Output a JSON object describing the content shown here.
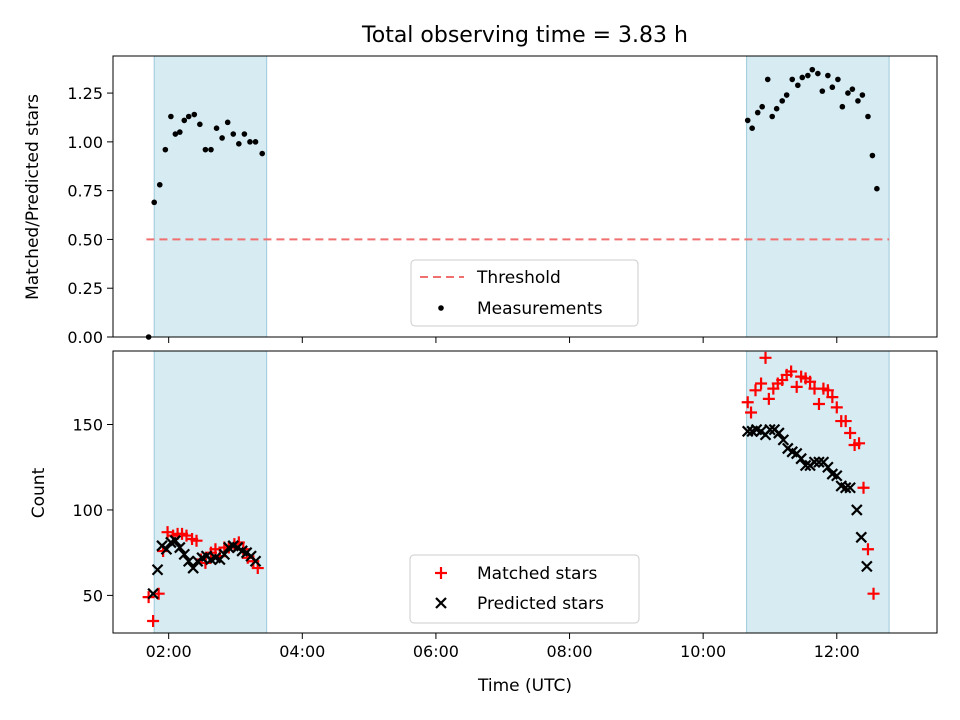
{
  "chart_data": [
    {
      "type": "scatter",
      "title": "Total observing time = 3.83 h",
      "xlabel": "",
      "ylabel": "Matched/Predicted stars",
      "xlim": [
        "01:10",
        "13:30"
      ],
      "ylim": [
        0,
        1.44
      ],
      "yticks": [
        0.0,
        0.25,
        0.5,
        0.75,
        1.0,
        1.25
      ],
      "ytick_labels": [
        "0.00",
        "0.25",
        "0.50",
        "0.75",
        "1.00",
        "1.25"
      ],
      "grid": false,
      "legend": "lower center",
      "shaded_intervals": [
        [
          "01:47",
          "03:28"
        ],
        [
          "10:39",
          "12:47"
        ]
      ],
      "threshold": {
        "name": "Threshold",
        "y": 0.5,
        "x_range": [
          "01:40",
          "12:47"
        ],
        "color": "#f07070"
      },
      "series": [
        {
          "name": "Measurements",
          "color": "#000000",
          "points": [
            [
              "01:42",
              0.0
            ],
            [
              "01:47",
              0.69
            ],
            [
              "01:52",
              0.78
            ],
            [
              "01:57",
              0.96
            ],
            [
              "02:02",
              1.13
            ],
            [
              "02:06",
              1.04
            ],
            [
              "02:10",
              1.05
            ],
            [
              "02:14",
              1.11
            ],
            [
              "02:18",
              1.13
            ],
            [
              "02:23",
              1.14
            ],
            [
              "02:28",
              1.09
            ],
            [
              "02:33",
              0.96
            ],
            [
              "02:38",
              0.96
            ],
            [
              "02:43",
              1.07
            ],
            [
              "02:48",
              1.02
            ],
            [
              "02:53",
              1.1
            ],
            [
              "02:58",
              1.04
            ],
            [
              "03:03",
              0.99
            ],
            [
              "03:08",
              1.04
            ],
            [
              "03:13",
              1.0
            ],
            [
              "03:18",
              1.0
            ],
            [
              "03:24",
              0.94
            ],
            [
              "10:40",
              1.11
            ],
            [
              "10:44",
              1.07
            ],
            [
              "10:49",
              1.15
            ],
            [
              "10:53",
              1.18
            ],
            [
              "10:58",
              1.32
            ],
            [
              "11:02",
              1.13
            ],
            [
              "11:06",
              1.17
            ],
            [
              "11:11",
              1.21
            ],
            [
              "11:15",
              1.24
            ],
            [
              "11:20",
              1.32
            ],
            [
              "11:25",
              1.29
            ],
            [
              "11:29",
              1.33
            ],
            [
              "11:34",
              1.34
            ],
            [
              "11:38",
              1.37
            ],
            [
              "11:43",
              1.35
            ],
            [
              "11:47",
              1.26
            ],
            [
              "11:52",
              1.34
            ],
            [
              "11:56",
              1.28
            ],
            [
              "12:01",
              1.32
            ],
            [
              "12:05",
              1.18
            ],
            [
              "12:10",
              1.25
            ],
            [
              "12:14",
              1.27
            ],
            [
              "12:19",
              1.21
            ],
            [
              "12:23",
              1.24
            ],
            [
              "12:28",
              1.13
            ],
            [
              "12:32",
              0.93
            ],
            [
              "12:36",
              0.76
            ]
          ]
        }
      ]
    },
    {
      "type": "scatter",
      "title": "",
      "xlabel": "Time (UTC)",
      "ylabel": "Count",
      "xlim": [
        "01:10",
        "13:30"
      ],
      "ylim": [
        28,
        193
      ],
      "xticks": [
        "02:00",
        "04:00",
        "06:00",
        "08:00",
        "10:00",
        "12:00"
      ],
      "yticks": [
        50,
        100,
        150
      ],
      "ytick_labels": [
        "50",
        "100",
        "150"
      ],
      "grid": false,
      "legend": "lower center",
      "shaded_intervals": [
        [
          "01:47",
          "03:28"
        ],
        [
          "10:39",
          "12:47"
        ]
      ],
      "series": [
        {
          "name": "Matched stars",
          "marker": "+",
          "color": "#ff0000",
          "points": [
            [
              "01:42",
              49
            ],
            [
              "01:46",
              35
            ],
            [
              "01:51",
              51
            ],
            [
              "01:55",
              76
            ],
            [
              "01:59",
              87
            ],
            [
              "02:04",
              85
            ],
            [
              "02:08",
              86
            ],
            [
              "02:12",
              86
            ],
            [
              "02:16",
              85
            ],
            [
              "02:21",
              83
            ],
            [
              "02:25",
              82
            ],
            [
              "02:29",
              71
            ],
            [
              "02:33",
              69
            ],
            [
              "02:38",
              75
            ],
            [
              "02:42",
              77
            ],
            [
              "02:46",
              73
            ],
            [
              "02:50",
              78
            ],
            [
              "02:54",
              78
            ],
            [
              "02:59",
              80
            ],
            [
              "03:03",
              81
            ],
            [
              "03:07",
              77
            ],
            [
              "03:11",
              72
            ],
            [
              "03:16",
              70
            ],
            [
              "03:20",
              66
            ],
            [
              "10:40",
              163
            ],
            [
              "10:43",
              157
            ],
            [
              "10:47",
              170
            ],
            [
              "10:52",
              174
            ],
            [
              "10:56",
              189
            ],
            [
              "10:59",
              165
            ],
            [
              "11:03",
              171
            ],
            [
              "11:07",
              174
            ],
            [
              "11:11",
              176
            ],
            [
              "11:15",
              179
            ],
            [
              "11:19",
              181
            ],
            [
              "11:24",
              172
            ],
            [
              "11:28",
              178
            ],
            [
              "11:32",
              177
            ],
            [
              "11:36",
              175
            ],
            [
              "11:40",
              171
            ],
            [
              "11:44",
              162
            ],
            [
              "11:48",
              171
            ],
            [
              "11:52",
              170
            ],
            [
              "11:56",
              166
            ],
            [
              "12:00",
              160
            ],
            [
              "12:04",
              152
            ],
            [
              "12:08",
              152
            ],
            [
              "12:12",
              145
            ],
            [
              "12:16",
              138
            ],
            [
              "12:20",
              139
            ],
            [
              "12:24",
              113
            ],
            [
              "12:28",
              77
            ],
            [
              "12:33",
              51
            ]
          ]
        },
        {
          "name": "Predicted stars",
          "marker": "x",
          "color": "#000000",
          "points": [
            [
              "01:46",
              51
            ],
            [
              "01:50",
              65
            ],
            [
              "01:54",
              79
            ],
            [
              "01:58",
              77
            ],
            [
              "02:02",
              81
            ],
            [
              "02:06",
              82
            ],
            [
              "02:10",
              78
            ],
            [
              "02:14",
              74
            ],
            [
              "02:18",
              70
            ],
            [
              "02:22",
              66
            ],
            [
              "02:26",
              70
            ],
            [
              "02:30",
              72
            ],
            [
              "02:34",
              73
            ],
            [
              "02:38",
              71
            ],
            [
              "02:42",
              72
            ],
            [
              "02:46",
              71
            ],
            [
              "02:50",
              74
            ],
            [
              "02:54",
              78
            ],
            [
              "02:58",
              79
            ],
            [
              "03:02",
              78
            ],
            [
              "03:06",
              76
            ],
            [
              "03:10",
              75
            ],
            [
              "03:14",
              73
            ],
            [
              "03:18",
              70
            ],
            [
              "10:40",
              146
            ],
            [
              "10:44",
              146
            ],
            [
              "10:48",
              147
            ],
            [
              "10:52",
              146
            ],
            [
              "10:56",
              144
            ],
            [
              "11:00",
              147
            ],
            [
              "11:04",
              147
            ],
            [
              "11:08",
              145
            ],
            [
              "11:12",
              141
            ],
            [
              "11:16",
              136
            ],
            [
              "11:20",
              134
            ],
            [
              "11:24",
              133
            ],
            [
              "11:28",
              130
            ],
            [
              "11:32",
              126
            ],
            [
              "11:36",
              126
            ],
            [
              "11:40",
              128
            ],
            [
              "11:44",
              128
            ],
            [
              "11:48",
              128
            ],
            [
              "11:52",
              125
            ],
            [
              "11:56",
              121
            ],
            [
              "12:00",
              120
            ],
            [
              "12:04",
              114
            ],
            [
              "12:08",
              113
            ],
            [
              "12:12",
              113
            ],
            [
              "12:18",
              100
            ],
            [
              "12:22",
              84
            ],
            [
              "12:27",
              67
            ]
          ]
        }
      ]
    }
  ]
}
